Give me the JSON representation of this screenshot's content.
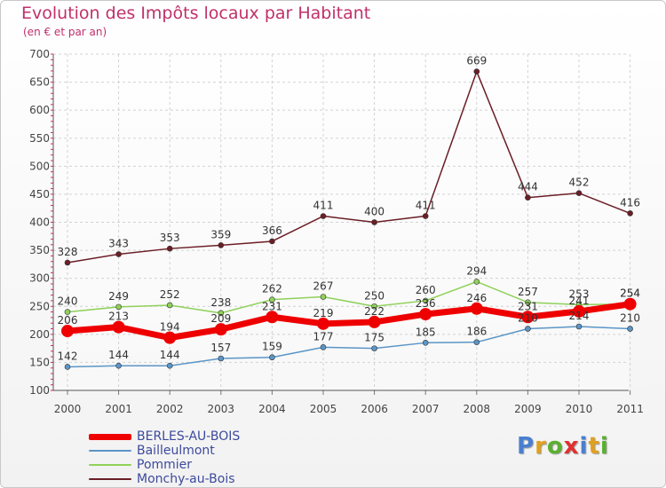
{
  "chart_data": {
    "type": "line",
    "title": "Evolution des Impôts locaux par Habitant",
    "subtitle": "(en € et par an)",
    "x": [
      "2000",
      "2001",
      "2002",
      "2003",
      "2004",
      "2005",
      "2006",
      "2007",
      "2008",
      "2009",
      "2010",
      "2011"
    ],
    "ylim": [
      100,
      700
    ],
    "yticks": [
      "100",
      "150",
      "200",
      "250",
      "300",
      "350",
      "400",
      "450",
      "500",
      "550",
      "600",
      "650",
      "700"
    ],
    "grid": true,
    "legend": "bottom-left",
    "series": [
      {
        "name": "BERLES-AU-BOIS",
        "color": "#ee0000",
        "values": [
          206,
          213,
          194,
          209,
          231,
          219,
          222,
          236,
          246,
          231,
          241,
          254
        ],
        "labels": [
          "206",
          "213",
          "194",
          "209",
          "231",
          "219",
          "222",
          "236",
          "246",
          "231",
          "241",
          "254"
        ]
      },
      {
        "name": "Bailleulmont",
        "color": "#5b95c6",
        "values": [
          142,
          144,
          144,
          157,
          159,
          177,
          175,
          185,
          186,
          210,
          214,
          210
        ],
        "labels": [
          "142",
          "144",
          "144",
          "157",
          "159",
          "177",
          "175",
          "185",
          "186",
          "210",
          "214",
          "210"
        ]
      },
      {
        "name": "Pommier",
        "color": "#8fd15a",
        "values": [
          240,
          249,
          252,
          238,
          262,
          267,
          250,
          260,
          294,
          257,
          253,
          254
        ],
        "labels": [
          "240",
          "249",
          "252",
          "238",
          "262",
          "267",
          "250",
          "260",
          "294",
          "257",
          "253",
          "254"
        ]
      },
      {
        "name": "Monchy-au-Bois",
        "color": "#6b1e26",
        "values": [
          328,
          343,
          353,
          359,
          366,
          411,
          400,
          411,
          669,
          444,
          452,
          416
        ],
        "labels": [
          "328",
          "343",
          "353",
          "359",
          "366",
          "411",
          "400",
          "411",
          "669",
          "444",
          "452",
          "416"
        ]
      }
    ]
  },
  "legend_items": [
    "BERLES-AU-BOIS",
    "Bailleulmont",
    "Pommier",
    "Monchy-au-Bois"
  ],
  "logo": {
    "text": "Proxiti"
  }
}
